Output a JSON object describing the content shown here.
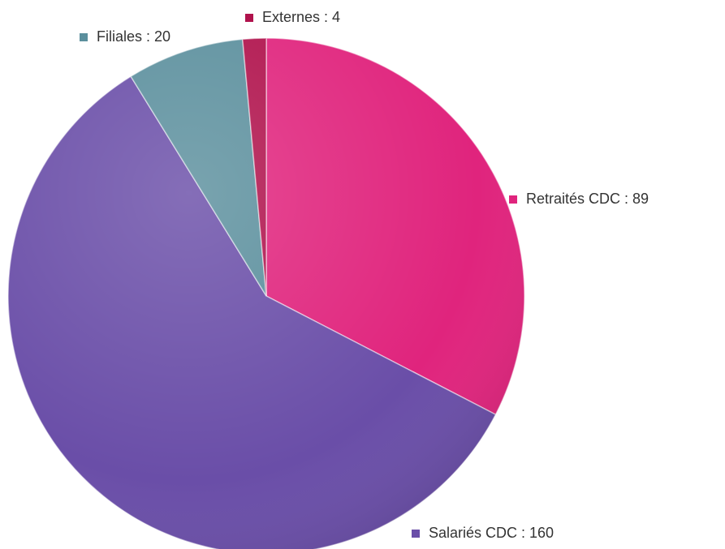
{
  "chart_data": {
    "type": "pie",
    "values": [
      89,
      160,
      20,
      4
    ],
    "value_labels": [
      "Retraités CDC : 89",
      "Salariés CDC : 160",
      "Filiales : 20",
      "Externes : 4"
    ],
    "colors": [
      "#e0247d",
      "#6a4ea8",
      "#5b8f9d",
      "#b0124c"
    ],
    "legend": "labels-outside"
  }
}
